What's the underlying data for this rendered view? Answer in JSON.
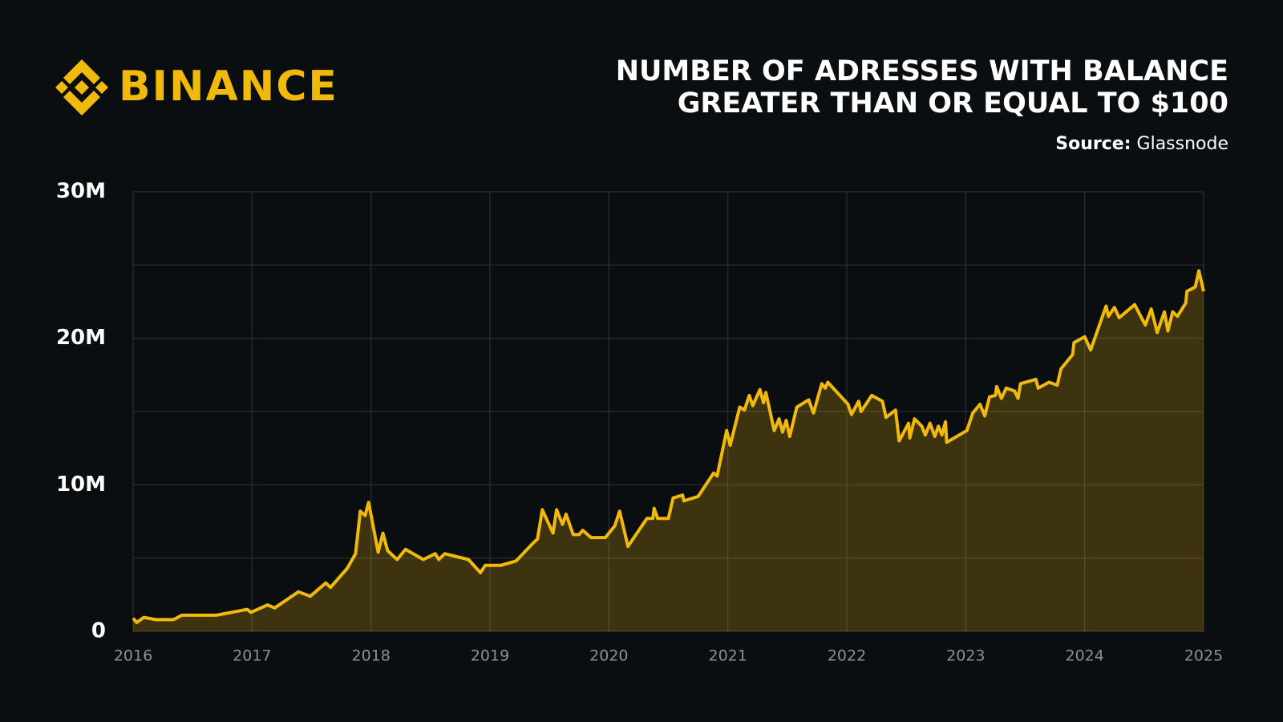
{
  "brand": "BINANCE",
  "chart_data": {
    "type": "area",
    "title": [
      "NUMBER OF ADRESSES WITH BALANCE",
      "GREATER THAN OR EQUAL TO $100"
    ],
    "source_label": "Source:",
    "source": "Glassnode",
    "color": "#f0b90b",
    "grid": true,
    "xlim": [
      2016,
      2025
    ],
    "xticks": [
      2016,
      2017,
      2018,
      2019,
      2020,
      2021,
      2022,
      2023,
      2024,
      2025
    ],
    "ylim": [
      0,
      30
    ],
    "yticks": [
      {
        "value": 0,
        "label": "0"
      },
      {
        "value": 10,
        "label": "10M"
      },
      {
        "value": 20,
        "label": "20M"
      },
      {
        "value": 30,
        "label": "30M"
      }
    ],
    "minor_yticks": [
      5,
      15,
      25
    ],
    "x": [
      2016.0,
      2016.03,
      2016.09,
      2016.19,
      2016.34,
      2016.41,
      2016.7,
      2016.96,
      2016.99,
      2017.13,
      2017.19,
      2017.39,
      2017.49,
      2017.62,
      2017.66,
      2017.8,
      2017.87,
      2017.91,
      2017.95,
      2017.98,
      2018.06,
      2018.1,
      2018.14,
      2018.22,
      2018.29,
      2018.44,
      2018.54,
      2018.57,
      2018.62,
      2018.82,
      2018.92,
      2018.96,
      2019.09,
      2019.22,
      2019.36,
      2019.4,
      2019.44,
      2019.53,
      2019.56,
      2019.61,
      2019.64,
      2019.7,
      2019.75,
      2019.78,
      2019.85,
      2019.97,
      2020.05,
      2020.09,
      2020.16,
      2020.32,
      2020.37,
      2020.38,
      2020.41,
      2020.5,
      2020.54,
      2020.62,
      2020.63,
      2020.75,
      2020.88,
      2020.91,
      2020.99,
      2021.02,
      2021.1,
      2021.14,
      2021.18,
      2021.21,
      2021.27,
      2021.3,
      2021.32,
      2021.39,
      2021.43,
      2021.46,
      2021.49,
      2021.52,
      2021.58,
      2021.68,
      2021.72,
      2021.79,
      2021.82,
      2021.84,
      2022.01,
      2022.04,
      2022.1,
      2022.12,
      2022.21,
      2022.3,
      2022.33,
      2022.41,
      2022.44,
      2022.48,
      2022.52,
      2022.53,
      2022.57,
      2022.63,
      2022.66,
      2022.7,
      2022.74,
      2022.77,
      2022.8,
      2022.83,
      2022.84,
      2023.01,
      2023.06,
      2023.12,
      2023.16,
      2023.2,
      2023.25,
      2023.26,
      2023.3,
      2023.34,
      2023.41,
      2023.44,
      2023.46,
      2023.59,
      2023.61,
      2023.7,
      2023.77,
      2023.8,
      2023.9,
      2023.91,
      2024.0,
      2024.05,
      2024.18,
      2024.2,
      2024.25,
      2024.29,
      2024.42,
      2024.51,
      2024.56,
      2024.61,
      2024.67,
      2024.7,
      2024.74,
      2024.78,
      2024.85,
      2024.86,
      2024.93,
      2024.96,
      2025.0
    ],
    "values": [
      0.9,
      0.6,
      0.95,
      0.8,
      0.8,
      1.1,
      1.1,
      1.5,
      1.3,
      1.8,
      1.6,
      2.7,
      2.4,
      3.3,
      3.0,
      4.3,
      5.3,
      8.2,
      7.9,
      8.8,
      5.4,
      6.7,
      5.5,
      4.9,
      5.6,
      4.9,
      5.3,
      4.9,
      5.3,
      4.9,
      4.0,
      4.5,
      4.5,
      4.8,
      6.0,
      6.3,
      8.3,
      6.7,
      8.3,
      7.3,
      8.0,
      6.6,
      6.6,
      6.9,
      6.4,
      6.4,
      7.2,
      8.2,
      5.8,
      7.7,
      7.7,
      8.4,
      7.7,
      7.7,
      9.1,
      9.3,
      8.9,
      9.2,
      10.8,
      10.6,
      13.7,
      12.7,
      15.3,
      15.1,
      16.1,
      15.4,
      16.5,
      15.6,
      16.3,
      13.7,
      14.5,
      13.6,
      14.4,
      13.3,
      15.3,
      15.8,
      14.9,
      16.9,
      16.6,
      17.0,
      15.5,
      14.8,
      15.7,
      15.0,
      16.1,
      15.7,
      14.6,
      15.1,
      13.0,
      13.6,
      14.2,
      13.2,
      14.5,
      14.0,
      13.4,
      14.2,
      13.3,
      14.0,
      13.4,
      14.3,
      12.9,
      13.7,
      14.9,
      15.5,
      14.7,
      16.0,
      16.1,
      16.7,
      15.9,
      16.6,
      16.4,
      15.9,
      16.9,
      17.2,
      16.6,
      17.0,
      16.8,
      17.9,
      18.9,
      19.7,
      20.1,
      19.2,
      22.2,
      21.5,
      22.1,
      21.4,
      22.3,
      20.9,
      22.0,
      20.4,
      21.8,
      20.5,
      21.8,
      21.5,
      22.4,
      23.2,
      23.5,
      24.6,
      23.2
    ]
  }
}
